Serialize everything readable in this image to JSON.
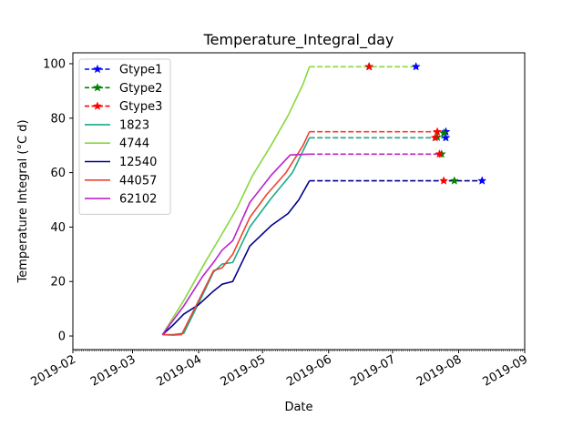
{
  "chart_data": {
    "type": "line",
    "title": "Temperature_Integral_day",
    "xlabel": "Date",
    "ylabel": "Temperature Integral (°C d)",
    "x_axis_type": "date",
    "xlim": [
      "2019-02-01",
      "2019-09-01"
    ],
    "ylim": [
      -5,
      104
    ],
    "x_ticks": [
      "2019-02",
      "2019-03",
      "2019-04",
      "2019-05",
      "2019-06",
      "2019-07",
      "2019-08",
      "2019-09"
    ],
    "y_ticks": [
      0,
      20,
      40,
      60,
      80,
      100
    ],
    "grid": false,
    "legend_position": "top-left",
    "series": [
      {
        "name": "Gtype1",
        "style": "dashed-star",
        "color": "#0000ff",
        "x": [
          "2019-06-20",
          "2019-07-12",
          "2019-07-26",
          "2019-07-26",
          "2019-08-12"
        ],
        "y": [
          98.9,
          98.9,
          75.0,
          72.8,
          57.0
        ]
      },
      {
        "name": "Gtype2",
        "style": "dashed-star",
        "color": "#008000",
        "x": [
          "2019-06-20",
          "2019-07-22",
          "2019-07-25",
          "2019-07-24",
          "2019-07-30"
        ],
        "y": [
          98.9,
          73.0,
          74.5,
          66.8,
          57.0
        ]
      },
      {
        "name": "Gtype3",
        "style": "dashed-star",
        "color": "#ff0000",
        "x": [
          "2019-06-20",
          "2019-07-21",
          "2019-07-22",
          "2019-07-23",
          "2019-07-25"
        ],
        "y": [
          98.9,
          72.8,
          75.0,
          66.8,
          57.0
        ]
      },
      {
        "name": "1823",
        "style": "solid",
        "color": "#1aaa8a",
        "x": [
          "2019-03-15",
          "2019-03-20",
          "2019-03-25",
          "2019-04-01",
          "2019-04-08",
          "2019-04-12",
          "2019-04-17",
          "2019-04-25",
          "2019-05-05",
          "2019-05-15",
          "2019-05-23",
          "2019-06-26",
          "2019-07-26"
        ],
        "y": [
          0.5,
          0.5,
          1.0,
          12.0,
          23.5,
          26.4,
          27.0,
          40.0,
          50.5,
          60.0,
          72.8,
          72.8,
          72.8
        ]
      },
      {
        "name": "4744",
        "style": "solid",
        "color": "#88d840",
        "x": [
          "2019-03-15",
          "2019-03-25",
          "2019-04-04",
          "2019-04-12",
          "2019-04-19",
          "2019-04-26",
          "2019-05-05",
          "2019-05-13",
          "2019-05-20",
          "2019-05-23",
          "2019-06-20",
          "2019-07-12"
        ],
        "y": [
          0.5,
          13.0,
          27.0,
          37.5,
          47.0,
          58.5,
          70.0,
          81.0,
          92.5,
          98.9,
          98.9,
          98.9
        ]
      },
      {
        "name": "12540",
        "style": "solid",
        "color": "#00008b",
        "x": [
          "2019-03-15",
          "2019-03-20",
          "2019-03-25",
          "2019-04-01",
          "2019-04-08",
          "2019-04-12",
          "2019-04-17",
          "2019-04-25",
          "2019-05-05",
          "2019-05-13",
          "2019-05-18",
          "2019-05-23",
          "2019-06-26",
          "2019-08-12"
        ],
        "y": [
          0.5,
          4.0,
          8.0,
          11.5,
          16.5,
          19.0,
          20.0,
          33.0,
          40.5,
          45.0,
          50.0,
          57.0,
          57.0,
          57.0
        ]
      },
      {
        "name": "44057",
        "style": "solid",
        "color": "#f04030",
        "x": [
          "2019-03-15",
          "2019-03-20",
          "2019-03-24",
          "2019-04-01",
          "2019-04-08",
          "2019-04-12",
          "2019-04-17",
          "2019-04-25",
          "2019-05-03",
          "2019-05-12",
          "2019-05-20",
          "2019-05-23",
          "2019-06-26",
          "2019-07-26"
        ],
        "y": [
          0.5,
          0.3,
          0.5,
          13.0,
          24.0,
          25.0,
          30.0,
          43.5,
          52.0,
          60.0,
          70.0,
          75.0,
          75.0,
          75.0
        ]
      },
      {
        "name": "62102",
        "style": "solid",
        "color": "#bb22cc",
        "x": [
          "2019-03-15",
          "2019-03-25",
          "2019-04-03",
          "2019-04-08",
          "2019-04-12",
          "2019-04-17",
          "2019-04-25",
          "2019-05-05",
          "2019-05-14",
          "2019-05-23",
          "2019-06-26",
          "2019-07-24"
        ],
        "y": [
          0.5,
          11.0,
          22.0,
          27.0,
          31.5,
          35.0,
          49.0,
          59.0,
          66.5,
          66.8,
          66.8,
          66.8
        ]
      }
    ]
  }
}
